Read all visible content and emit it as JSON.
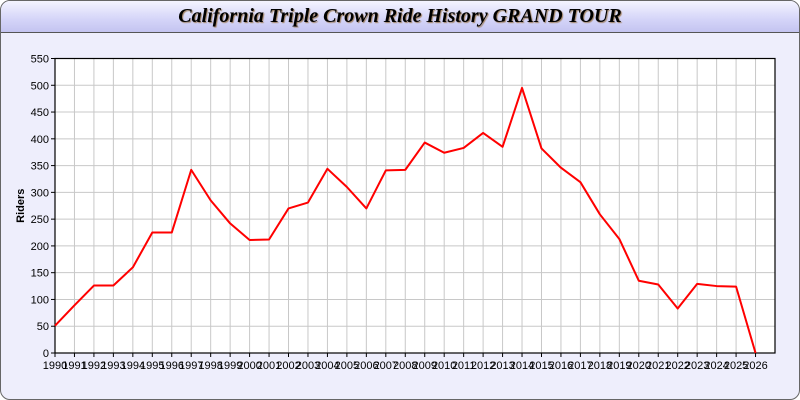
{
  "chart_data": {
    "type": "line",
    "title": "California Triple Crown Ride History GRAND TOUR",
    "xlabel": "",
    "ylabel": "Riders",
    "xlim": [
      1990,
      2027
    ],
    "ylim": [
      0,
      550
    ],
    "ytick_step": 50,
    "grid": true,
    "line_color": "#ff0000",
    "x": [
      1990,
      1991,
      1992,
      1993,
      1994,
      1995,
      1996,
      1997,
      1998,
      1999,
      2000,
      2001,
      2002,
      2003,
      2004,
      2005,
      2006,
      2007,
      2008,
      2009,
      2010,
      2011,
      2012,
      2013,
      2014,
      2015,
      2016,
      2017,
      2018,
      2019,
      2020,
      2021,
      2022,
      2023,
      2024,
      2025,
      2026
    ],
    "series": [
      {
        "values": [
          51,
          89,
          126,
          126,
          160,
          225,
          225,
          342,
          285,
          242,
          211,
          212,
          270,
          281,
          344,
          310,
          270,
          341,
          342,
          393,
          374,
          383,
          411,
          385,
          495,
          382,
          346,
          319,
          259,
          213,
          135,
          128,
          83,
          129,
          125,
          124,
          0
        ]
      }
    ]
  }
}
